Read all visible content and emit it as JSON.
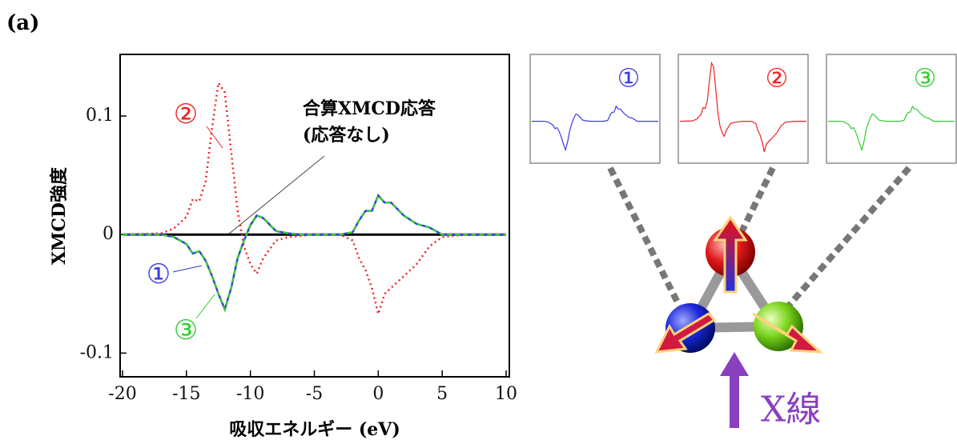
{
  "panel_label": "(a)",
  "diagram": {
    "xray_label": "X線"
  },
  "chart_data": {
    "type": "line",
    "ylabel": "XMCD強度",
    "xlabel": "吸収エネルギー (eV)",
    "annotation": "(応答なし)",
    "x": [
      -20,
      -17,
      -16,
      -15,
      -14.5,
      -14,
      -13.5,
      -13,
      -12.5,
      -12,
      -11.5,
      -11,
      -10.5,
      -10,
      -9.5,
      -9,
      -8,
      -7,
      -6,
      -5,
      -3,
      -2,
      -1.5,
      -1,
      -0.5,
      0,
      0.5,
      1,
      2,
      3,
      4,
      5,
      7,
      10
    ],
    "series": [
      {
        "name": "①",
        "color": "#3b3be6",
        "style": "solid",
        "values": [
          0,
          0,
          -0.002,
          -0.008,
          -0.016,
          -0.014,
          -0.022,
          -0.035,
          -0.05,
          -0.063,
          -0.045,
          -0.02,
          -0.005,
          0.008,
          0.016,
          0.014,
          0.003,
          0.001,
          0,
          0,
          0,
          0.002,
          0.012,
          0.02,
          0.02,
          0.033,
          0.027,
          0.027,
          0.016,
          0.009,
          0.006,
          0,
          0,
          0
        ]
      },
      {
        "name": "②",
        "color": "#ee2222",
        "style": "dotted",
        "values": [
          0,
          0.001,
          0.005,
          0.015,
          0.03,
          0.028,
          0.045,
          0.09,
          0.128,
          0.12,
          0.07,
          0.02,
          -0.01,
          -0.025,
          -0.033,
          -0.02,
          -0.005,
          -0.002,
          -0.001,
          0,
          0,
          -0.005,
          -0.02,
          -0.03,
          -0.045,
          -0.067,
          -0.05,
          -0.045,
          -0.035,
          -0.025,
          -0.01,
          -0.002,
          0,
          0
        ]
      },
      {
        "name": "③",
        "color": "#33cc33",
        "style": "dashed",
        "values": [
          0,
          0,
          -0.002,
          -0.008,
          -0.016,
          -0.014,
          -0.022,
          -0.035,
          -0.05,
          -0.063,
          -0.045,
          -0.02,
          -0.005,
          0.008,
          0.016,
          0.014,
          0.003,
          0.001,
          0,
          0,
          0,
          0.002,
          0.012,
          0.02,
          0.02,
          0.033,
          0.027,
          0.027,
          0.016,
          0.009,
          0.006,
          0,
          0,
          0
        ]
      },
      {
        "name": "合算XMCD応答",
        "color": "#000000",
        "style": "solid",
        "values": [
          0,
          0,
          0,
          0,
          0,
          0,
          0,
          0,
          0,
          0,
          0,
          0,
          0,
          0,
          0,
          0,
          0,
          0,
          0,
          0,
          0,
          0,
          0,
          0,
          0,
          0,
          0,
          0,
          0,
          0,
          0,
          0,
          0,
          0
        ]
      }
    ],
    "xlim": [
      -20,
      10
    ],
    "ylim": [
      -0.12,
      0.15
    ],
    "xticks": [
      -20,
      -15,
      -10,
      -5,
      0,
      5,
      10
    ],
    "yticks": [
      -0.1,
      0,
      0.1
    ],
    "grid": false
  }
}
